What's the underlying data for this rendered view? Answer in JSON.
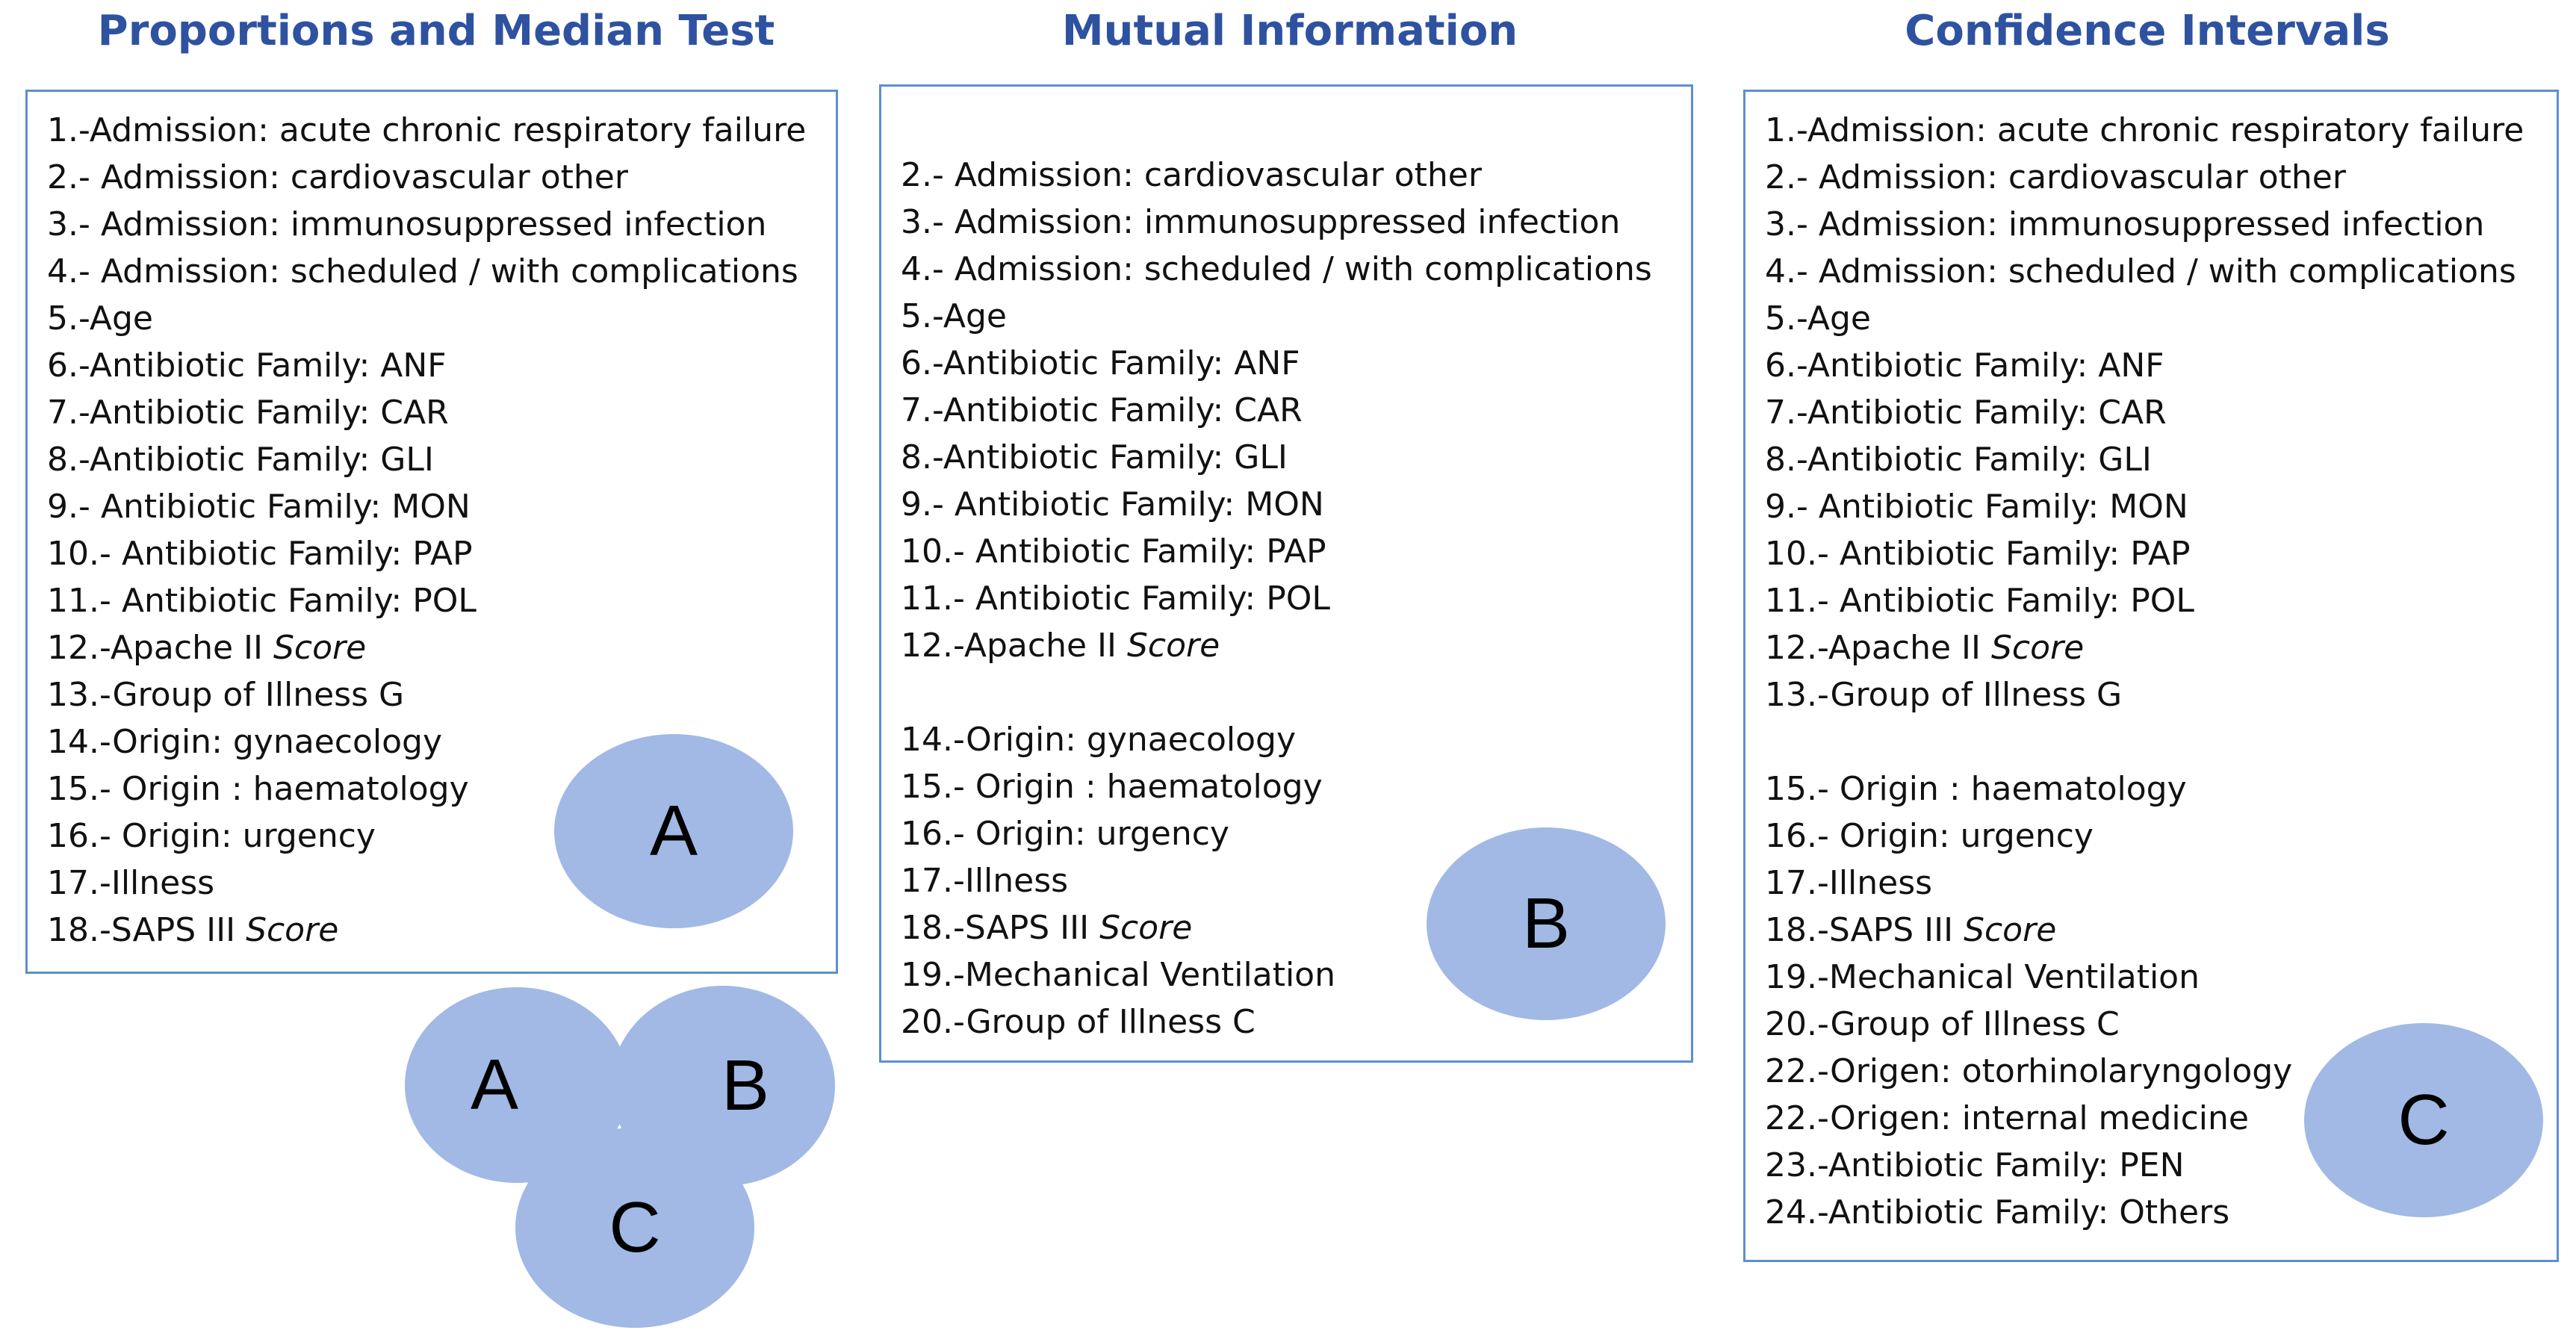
{
  "titles": {
    "a": "Proportions and Median Test",
    "b": "Mutual Information",
    "c": "Confidence Intervals"
  },
  "ellipse_labels": {
    "a": "A",
    "b": "B",
    "c": "C"
  },
  "box_a": [
    {
      "text": "1.-Admission: acute chronic respiratory failure"
    },
    {
      "text": "2.- Admission: cardiovascular other"
    },
    {
      "text": "3.- Admission: immunosuppressed infection"
    },
    {
      "text": "4.- Admission: scheduled / with complications"
    },
    {
      "text": "5.-Age"
    },
    {
      "text": "6.-Antibiotic Family: ANF"
    },
    {
      "text": "7.-Antibiotic Family: CAR"
    },
    {
      "text": "8.-Antibiotic Family: GLI"
    },
    {
      "text": "9.- Antibiotic Family: MON"
    },
    {
      "text": "10.- Antibiotic Family: PAP"
    },
    {
      "text": "11.- Antibiotic Family: POL"
    },
    {
      "text": "12.-Apache II ",
      "italic": "Score"
    },
    {
      "text": "13.-Group of Illness G"
    },
    {
      "text": "14.-Origin: gynaecology"
    },
    {
      "text": "15.- Origin : haematology"
    },
    {
      "text": "16.- Origin: urgency"
    },
    {
      "text": "17.-Illness"
    },
    {
      "text": "18.-SAPS III ",
      "italic": "Score"
    }
  ],
  "box_b": [
    {
      "text": "2.- Admission: cardiovascular other"
    },
    {
      "text": "3.- Admission: immunosuppressed infection"
    },
    {
      "text": "4.- Admission: scheduled / with complications"
    },
    {
      "text": "5.-Age"
    },
    {
      "text": "6.-Antibiotic Family: ANF"
    },
    {
      "text": "7.-Antibiotic Family: CAR"
    },
    {
      "text": "8.-Antibiotic Family: GLI"
    },
    {
      "text": "9.- Antibiotic Family: MON"
    },
    {
      "text": "10.- Antibiotic Family: PAP"
    },
    {
      "text": "11.- Antibiotic Family: POL"
    },
    {
      "text": "12.-Apache II ",
      "italic": "Score"
    },
    {
      "text": "14.-Origin: gynaecology"
    },
    {
      "text": "15.- Origin : haematology"
    },
    {
      "text": "16.- Origin: urgency"
    },
    {
      "text": "17.-Illness"
    },
    {
      "text": "18.-SAPS III ",
      "italic": "Score"
    },
    {
      "text": "19.-Mechanical Ventilation"
    },
    {
      "text": "20.-Group of Illness C"
    }
  ],
  "box_c": [
    {
      "text": "1.-Admission: acute chronic respiratory failure"
    },
    {
      "text": "2.- Admission: cardiovascular other"
    },
    {
      "text": "3.- Admission: immunosuppressed infection"
    },
    {
      "text": "4.- Admission: scheduled / with complications"
    },
    {
      "text": "5.-Age"
    },
    {
      "text": "6.-Antibiotic Family: ANF"
    },
    {
      "text": "7.-Antibiotic Family: CAR"
    },
    {
      "text": "8.-Antibiotic Family: GLI"
    },
    {
      "text": "9.- Antibiotic Family: MON"
    },
    {
      "text": "10.- Antibiotic Family: PAP"
    },
    {
      "text": "11.- Antibiotic Family: POL"
    },
    {
      "text": "12.-Apache II ",
      "italic": "Score"
    },
    {
      "text": "13.-Group of Illness G"
    },
    {
      "text": "15.- Origin : haematology"
    },
    {
      "text": "16.- Origin: urgency"
    },
    {
      "text": "17.-Illness"
    },
    {
      "text": "18.-SAPS III ",
      "italic": "Score"
    },
    {
      "text": "19.-Mechanical Ventilation"
    },
    {
      "text": "20.-Group of Illness C"
    },
    {
      "text": "22.-Origen: otorhinolaryngology"
    },
    {
      "text": "22.-Origen: internal medicine"
    },
    {
      "text": "23.-Antibiotic Family: PEN"
    },
    {
      "text": "24.-Antibiotic Family: Others"
    }
  ],
  "colors": {
    "title": "#2e52a0",
    "box_border": "#5c8fd1",
    "ellipse_fill": "#a1b9e4"
  }
}
